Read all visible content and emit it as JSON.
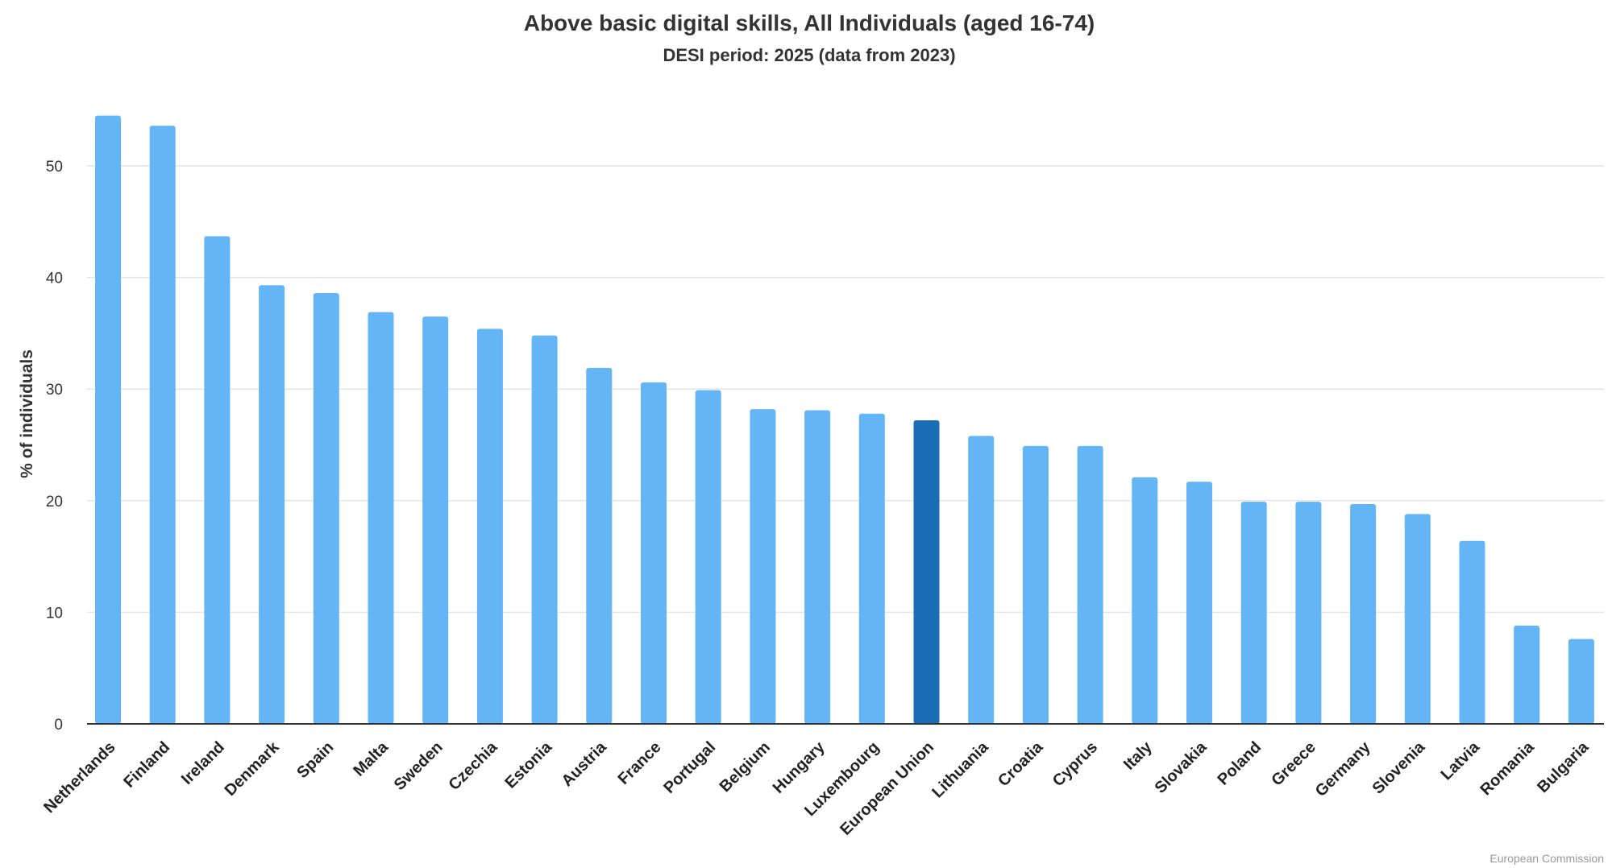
{
  "chart_data": {
    "type": "bar",
    "title": "Above basic digital skills, All Individuals (aged 16-74)",
    "subtitle": "DESI period: 2025 (data from 2023)",
    "ylabel": "% of individuals",
    "xlabel": "",
    "ylim": [
      0,
      55
    ],
    "yticks": [
      0,
      10,
      20,
      30,
      40,
      50
    ],
    "grid": true,
    "legend": "none",
    "categories": [
      "Netherlands",
      "Finland",
      "Ireland",
      "Denmark",
      "Spain",
      "Malta",
      "Sweden",
      "Czechia",
      "Estonia",
      "Austria",
      "France",
      "Portugal",
      "Belgium",
      "Hungary",
      "Luxembourg",
      "European Union",
      "Lithuania",
      "Croatia",
      "Cyprus",
      "Italy",
      "Slovakia",
      "Poland",
      "Greece",
      "Germany",
      "Slovenia",
      "Latvia",
      "Romania",
      "Bulgaria"
    ],
    "values": [
      54.5,
      53.6,
      43.7,
      39.3,
      38.6,
      36.9,
      36.5,
      35.4,
      34.8,
      31.9,
      30.6,
      29.9,
      28.2,
      28.1,
      27.8,
      27.2,
      25.8,
      24.9,
      24.9,
      22.1,
      21.7,
      19.9,
      19.9,
      19.7,
      18.8,
      16.4,
      8.8,
      7.6
    ],
    "highlight": "European Union",
    "colors": {
      "bar": "#64b5f6",
      "highlight": "#1b6eb5",
      "grid": "#e4e4e4",
      "axis": "#333333"
    }
  },
  "credit": "European Commission"
}
